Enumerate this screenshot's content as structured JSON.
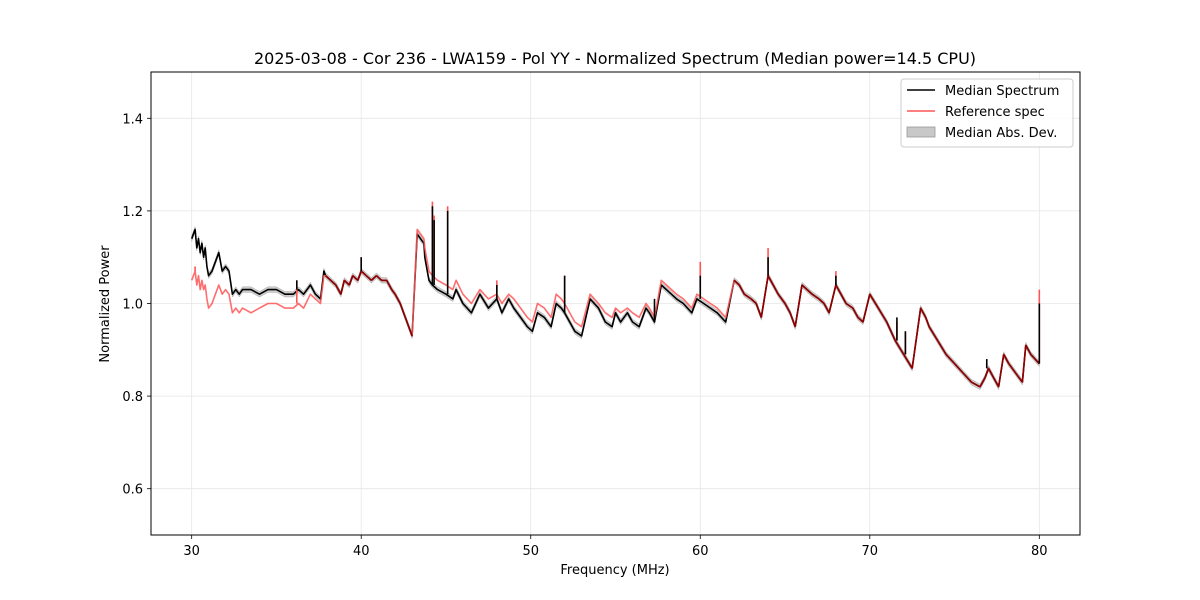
{
  "chart_data": {
    "type": "line",
    "title": "2025-03-08 - Cor 236 - LWA159 - Pol YY - Normalized Spectrum (Median power=14.5 CPU)",
    "xlabel": "Frequency (MHz)",
    "ylabel": "Normalized Power",
    "xlim": [
      27.6,
      82.4
    ],
    "ylim": [
      0.5,
      1.5
    ],
    "xticks": [
      30,
      40,
      50,
      60,
      70,
      80
    ],
    "yticks": [
      0.6,
      0.8,
      1.0,
      1.2,
      1.4
    ],
    "grid": true,
    "legend_position": "top-right",
    "legend": [
      "Median Spectrum",
      "Reference spec",
      "Median Abs. Dev."
    ],
    "colors": {
      "median": "#000000",
      "reference": "#ff5555",
      "mad_fill": "#c8c8c8",
      "overlap": "#8b0000"
    },
    "series": [
      {
        "name": "Median Spectrum",
        "x": [
          30.0,
          30.2,
          30.3,
          30.4,
          30.5,
          30.6,
          30.7,
          30.8,
          30.9,
          31.0,
          31.2,
          31.4,
          31.6,
          31.8,
          32.0,
          32.2,
          32.4,
          32.6,
          32.8,
          33.0,
          33.5,
          34.0,
          34.5,
          35.0,
          35.5,
          36.0,
          36.3,
          36.6,
          37.0,
          37.3,
          37.6,
          37.8,
          37.9,
          38.2,
          38.5,
          38.8,
          39.0,
          39.3,
          39.5,
          39.8,
          40.0,
          40.3,
          40.6,
          40.9,
          41.2,
          41.5,
          41.8,
          42.0,
          42.3,
          42.6,
          43.0,
          43.3,
          43.7,
          43.75,
          43.9,
          44.0,
          44.2,
          44.5,
          45.0,
          45.4,
          45.6,
          46.0,
          46.5,
          47.0,
          47.5,
          48.0,
          48.3,
          48.7,
          49.0,
          49.4,
          49.8,
          50.1,
          50.4,
          50.8,
          51.2,
          51.5,
          51.8,
          52.0,
          52.3,
          52.6,
          53.0,
          53.5,
          54.0,
          54.4,
          54.8,
          55.0,
          55.3,
          55.7,
          56.0,
          56.4,
          56.8,
          57.0,
          57.3,
          57.7,
          58.0,
          58.3,
          58.6,
          59.0,
          59.5,
          59.8,
          60.2,
          60.6,
          61.0,
          61.5,
          62.0,
          62.3,
          62.6,
          63.0,
          63.3,
          63.6,
          64.0,
          64.3,
          64.6,
          65.0,
          65.3,
          65.6,
          66.0,
          66.3,
          66.6,
          67.0,
          67.3,
          67.6,
          68.0,
          68.3,
          68.6,
          69.0,
          69.3,
          69.6,
          70.0,
          70.5,
          71.0,
          71.5,
          72.0,
          72.5,
          73.0,
          73.3,
          73.5,
          74.0,
          74.5,
          75.0,
          75.5,
          76.0,
          76.5,
          76.8,
          77.0,
          77.3,
          77.6,
          77.9,
          78.2,
          78.6,
          79.0,
          79.2,
          79.5,
          80.0
        ],
        "values": [
          1.14,
          1.16,
          1.12,
          1.14,
          1.11,
          1.13,
          1.1,
          1.12,
          1.08,
          1.06,
          1.07,
          1.09,
          1.11,
          1.07,
          1.08,
          1.07,
          1.02,
          1.03,
          1.02,
          1.03,
          1.03,
          1.02,
          1.03,
          1.03,
          1.02,
          1.02,
          1.03,
          1.02,
          1.04,
          1.02,
          1.01,
          1.07,
          1.06,
          1.05,
          1.04,
          1.02,
          1.05,
          1.04,
          1.06,
          1.05,
          1.07,
          1.06,
          1.05,
          1.06,
          1.05,
          1.05,
          1.03,
          1.02,
          1.0,
          0.97,
          0.93,
          1.15,
          1.13,
          1.1,
          1.07,
          1.05,
          1.04,
          1.03,
          1.02,
          1.01,
          1.03,
          1.0,
          0.98,
          1.02,
          0.99,
          1.01,
          0.98,
          1.01,
          0.99,
          0.97,
          0.95,
          0.94,
          0.98,
          0.97,
          0.95,
          1.0,
          0.99,
          0.98,
          0.96,
          0.94,
          0.93,
          1.01,
          0.99,
          0.96,
          0.95,
          0.98,
          0.96,
          0.98,
          0.96,
          0.95,
          0.99,
          0.98,
          0.96,
          1.04,
          1.03,
          1.02,
          1.01,
          1.0,
          0.98,
          1.01,
          1.0,
          0.99,
          0.98,
          0.96,
          1.05,
          1.04,
          1.02,
          1.01,
          1.0,
          0.97,
          1.06,
          1.04,
          1.02,
          1.0,
          0.98,
          0.95,
          1.04,
          1.03,
          1.02,
          1.01,
          1.0,
          0.98,
          1.04,
          1.02,
          1.0,
          0.99,
          0.97,
          0.96,
          1.02,
          0.99,
          0.96,
          0.92,
          0.89,
          0.86,
          0.99,
          0.97,
          0.95,
          0.92,
          0.89,
          0.87,
          0.85,
          0.83,
          0.82,
          0.84,
          0.86,
          0.84,
          0.82,
          0.89,
          0.87,
          0.85,
          0.83,
          0.91,
          0.89,
          0.87
        ]
      },
      {
        "name": "Reference spec",
        "x": [
          30.0,
          30.2,
          30.3,
          30.4,
          30.5,
          30.6,
          30.7,
          30.8,
          30.9,
          31.0,
          31.2,
          31.4,
          31.6,
          31.8,
          32.0,
          32.2,
          32.4,
          32.6,
          32.8,
          33.0,
          33.5,
          34.0,
          34.5,
          35.0,
          35.5,
          36.0,
          36.3,
          36.6,
          37.0,
          37.3,
          37.6,
          37.8,
          37.9,
          38.2,
          38.5,
          38.8,
          39.0,
          39.3,
          39.5,
          39.8,
          40.0,
          40.3,
          40.6,
          40.9,
          41.2,
          41.5,
          41.8,
          42.0,
          42.3,
          42.6,
          43.0,
          43.3,
          43.7,
          43.75,
          43.9,
          44.0,
          44.2,
          44.5,
          45.0,
          45.4,
          45.6,
          46.0,
          46.5,
          47.0,
          47.5,
          48.0,
          48.3,
          48.7,
          49.0,
          49.4,
          49.8,
          50.1,
          50.4,
          50.8,
          51.2,
          51.5,
          51.8,
          52.0,
          52.3,
          52.6,
          53.0,
          53.5,
          54.0,
          54.4,
          54.8,
          55.0,
          55.3,
          55.7,
          56.0,
          56.4,
          56.8,
          57.0,
          57.3,
          57.7,
          58.0,
          58.3,
          58.6,
          59.0,
          59.5,
          59.8,
          60.2,
          60.6,
          61.0,
          61.5,
          62.0,
          62.3,
          62.6,
          63.0,
          63.3,
          63.6,
          64.0,
          64.3,
          64.6,
          65.0,
          65.3,
          65.6,
          66.0,
          66.3,
          66.6,
          67.0,
          67.3,
          67.6,
          68.0,
          68.3,
          68.6,
          69.0,
          69.3,
          69.6,
          70.0,
          70.5,
          71.0,
          71.5,
          72.0,
          72.5,
          73.0,
          73.3,
          73.5,
          74.0,
          74.5,
          75.0,
          75.5,
          76.0,
          76.5,
          76.8,
          77.0,
          77.3,
          77.6,
          77.9,
          78.2,
          78.6,
          79.0,
          79.2,
          79.5,
          80.0
        ],
        "values": [
          1.05,
          1.07,
          1.04,
          1.06,
          1.03,
          1.05,
          1.03,
          1.04,
          1.01,
          0.99,
          1.0,
          1.02,
          1.04,
          1.02,
          1.03,
          1.02,
          0.98,
          0.99,
          0.98,
          0.99,
          0.98,
          0.99,
          1.0,
          1.0,
          0.99,
          0.99,
          1.0,
          0.99,
          1.02,
          1.01,
          1.0,
          1.06,
          1.06,
          1.05,
          1.04,
          1.02,
          1.05,
          1.04,
          1.06,
          1.05,
          1.07,
          1.06,
          1.05,
          1.06,
          1.05,
          1.05,
          1.03,
          1.02,
          1.0,
          0.97,
          0.93,
          1.16,
          1.14,
          1.12,
          1.09,
          1.07,
          1.06,
          1.05,
          1.04,
          1.03,
          1.05,
          1.02,
          1.0,
          1.03,
          1.01,
          1.02,
          1.0,
          1.02,
          1.01,
          0.99,
          0.97,
          0.96,
          1.0,
          0.99,
          0.97,
          1.02,
          1.01,
          1.0,
          0.98,
          0.96,
          0.95,
          1.02,
          1.0,
          0.98,
          0.97,
          0.99,
          0.98,
          0.99,
          0.98,
          0.97,
          1.0,
          0.99,
          0.97,
          1.05,
          1.04,
          1.03,
          1.02,
          1.01,
          0.99,
          1.02,
          1.01,
          1.0,
          0.99,
          0.97,
          1.05,
          1.04,
          1.02,
          1.01,
          1.0,
          0.97,
          1.06,
          1.04,
          1.02,
          1.0,
          0.98,
          0.95,
          1.04,
          1.03,
          1.02,
          1.01,
          1.0,
          0.98,
          1.04,
          1.02,
          1.0,
          0.99,
          0.97,
          0.96,
          1.02,
          0.99,
          0.96,
          0.92,
          0.89,
          0.86,
          0.99,
          0.97,
          0.95,
          0.92,
          0.89,
          0.87,
          0.85,
          0.83,
          0.82,
          0.84,
          0.86,
          0.84,
          0.82,
          0.89,
          0.87,
          0.85,
          0.83,
          0.91,
          0.89,
          0.87
        ]
      }
    ],
    "spikes": [
      {
        "x": 30.2,
        "median": 1.16,
        "reference": 1.08
      },
      {
        "x": 36.2,
        "median": 1.05,
        "reference": 1.05
      },
      {
        "x": 40.0,
        "median": 1.1,
        "reference": 1.1
      },
      {
        "x": 44.2,
        "median": 1.21,
        "reference": 1.22
      },
      {
        "x": 44.3,
        "median": 1.18,
        "reference": 1.19
      },
      {
        "x": 45.1,
        "median": 1.2,
        "reference": 1.21
      },
      {
        "x": 48.0,
        "median": 1.04,
        "reference": 1.05
      },
      {
        "x": 52.0,
        "median": 1.06,
        "reference": 1.06
      },
      {
        "x": 57.3,
        "median": 1.01,
        "reference": 0.99
      },
      {
        "x": 60.0,
        "median": 1.06,
        "reference": 1.09
      },
      {
        "x": 64.0,
        "median": 1.1,
        "reference": 1.12
      },
      {
        "x": 68.0,
        "median": 1.06,
        "reference": 1.07
      },
      {
        "x": 71.6,
        "median": 0.97,
        "reference": 0.96
      },
      {
        "x": 72.1,
        "median": 0.94,
        "reference": 0.94
      },
      {
        "x": 76.9,
        "median": 0.88,
        "reference": 0.87
      },
      {
        "x": 80.0,
        "median": 1.0,
        "reference": 1.03
      }
    ],
    "mad_width": 0.006
  }
}
